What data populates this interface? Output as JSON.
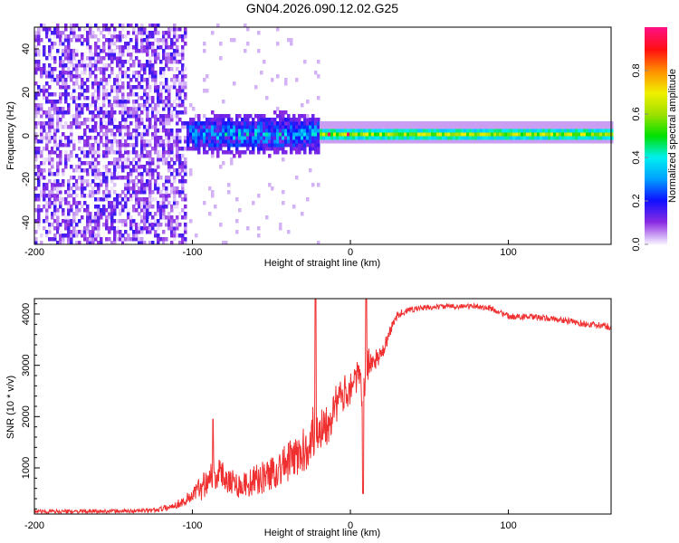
{
  "title": "GN04.2026.090.12.02.G25",
  "chart_data": [
    {
      "type": "heatmap",
      "xlabel": "Height of straight line (km)",
      "ylabel": "Frequency (Hz)",
      "xlim": [
        -200,
        165
      ],
      "ylim": [
        -50,
        50
      ],
      "xticks": [
        -200,
        -100,
        0,
        100
      ],
      "yticks": [
        -40,
        -20,
        0,
        20,
        40
      ],
      "colorbar": {
        "label": "Normalized spectral amplitude",
        "range": [
          0,
          1
        ],
        "ticks": [
          "0.0",
          "0.2",
          "0.4",
          "0.6",
          "0.8"
        ],
        "colors": [
          "#f4ecff",
          "#8a2be2",
          "#1010ff",
          "#00a0ff",
          "#00f0f0",
          "#00e000",
          "#a0e000",
          "#f0f000",
          "#ff9000",
          "#ff1010",
          "#ff1080"
        ]
      },
      "regions": [
        {
          "name": "noise",
          "x": [
            -200,
            -105
          ],
          "freq_halfwidth": 50,
          "amplitude": [
            0.02,
            0.18
          ]
        },
        {
          "name": "scattered-signal",
          "x": [
            -120,
            -20
          ],
          "freq_halfwidth": 8,
          "amplitude": [
            0.1,
            0.5
          ]
        },
        {
          "name": "ridge",
          "x": [
            -20,
            165
          ],
          "center_freq": 0,
          "freq_halfwidth": 3,
          "amplitude": [
            0.45,
            0.95
          ]
        }
      ]
    },
    {
      "type": "line",
      "xlabel": "Height of straight line (km)",
      "ylabel": "SNR (10 * v/v)",
      "xlim": [
        -200,
        165
      ],
      "ylim": [
        100,
        4300
      ],
      "xticks": [
        -200,
        -100,
        0,
        100
      ],
      "yticks": [
        1000,
        2000,
        3000,
        4000
      ],
      "color": "#f03030",
      "series": [
        {
          "name": "SNR envelope",
          "x": [
            -200,
            -180,
            -160,
            -140,
            -125,
            -115,
            -105,
            -95,
            -88,
            -80,
            -70,
            -60,
            -50,
            -40,
            -30,
            -22,
            -15,
            -10,
            -5,
            0,
            5,
            8,
            10,
            15,
            20,
            25,
            30,
            40,
            60,
            80,
            90,
            100,
            110,
            130,
            150,
            165
          ],
          "mean": [
            150,
            150,
            150,
            160,
            170,
            230,
            350,
            600,
            900,
            850,
            650,
            750,
            900,
            1100,
            1300,
            1800,
            1900,
            2200,
            2400,
            2600,
            2800,
            2300,
            3000,
            3100,
            3200,
            3650,
            4000,
            4100,
            4150,
            4150,
            4100,
            3950,
            3950,
            3900,
            3800,
            3750
          ],
          "spread": [
            80,
            80,
            80,
            80,
            90,
            120,
            200,
            500,
            700,
            600,
            500,
            600,
            700,
            800,
            900,
            1200,
            1000,
            800,
            700,
            700,
            600,
            900,
            700,
            400,
            300,
            250,
            150,
            120,
            100,
            100,
            120,
            120,
            120,
            120,
            130,
            130
          ]
        }
      ],
      "spikes": [
        {
          "x": -22,
          "y": 4300
        },
        {
          "x": 10,
          "y": 4300
        },
        {
          "x": 8,
          "y": 500
        },
        {
          "x": -87,
          "y": 1950
        }
      ]
    }
  ]
}
